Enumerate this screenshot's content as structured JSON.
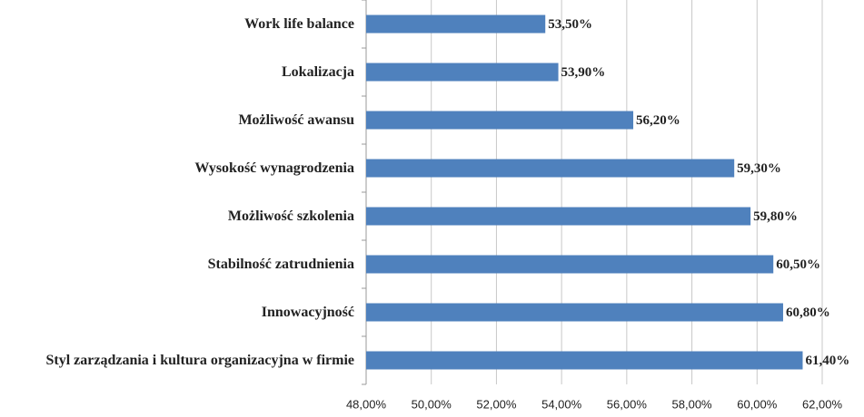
{
  "chart_data": {
    "type": "bar",
    "orientation": "horizontal",
    "categories": [
      "Work life balance",
      "Lokalizacja",
      "Możliwość awansu",
      "Wysokość wynagrodzenia",
      "Możliwość szkolenia",
      "Stabilność zatrudnienia",
      "Innowacyjność",
      "Styl zarządzania i kultura organizacyjna w firmie"
    ],
    "values": [
      53.5,
      53.9,
      56.2,
      59.3,
      59.8,
      60.5,
      60.8,
      61.4
    ],
    "value_labels": [
      "53,50%",
      "53,90%",
      "56,20%",
      "59,30%",
      "59,80%",
      "60,50%",
      "60,80%",
      "61,40%"
    ],
    "color": "#4f81bd",
    "xlim": [
      48,
      62
    ],
    "xticks": [
      {
        "value": 48,
        "label": "48,00%"
      },
      {
        "value": 50,
        "label": "50,00%"
      },
      {
        "value": 52,
        "label": "52,00%"
      },
      {
        "value": 54,
        "label": "54,00%"
      },
      {
        "value": 56,
        "label": "56,00%"
      },
      {
        "value": 58,
        "label": "58,00%"
      },
      {
        "value": 60,
        "label": "60,00%"
      },
      {
        "value": 62,
        "label": "62,00%"
      }
    ],
    "grid": true
  }
}
